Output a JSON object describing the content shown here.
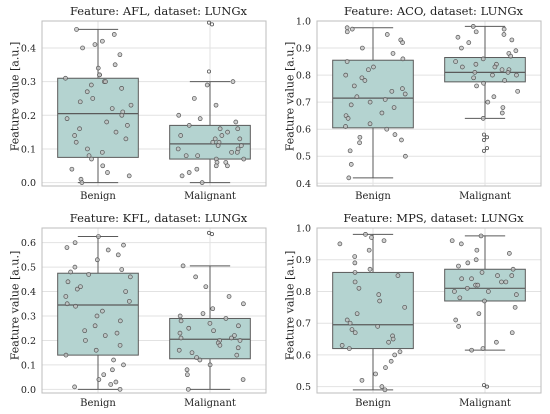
{
  "colors": {
    "box_fill": "#b4d3d0",
    "box_edge": "#5a5a5a",
    "point_edge": "#555555",
    "point_fill": "#c0c0c0",
    "grid": "#e2e2e2",
    "frame": "#bdbdbd"
  },
  "chart_data": [
    {
      "type": "box",
      "title": "Feature: AFL, dataset: LUNGx",
      "ylabel": "Feature value [a.u.]",
      "categories": [
        "Benign",
        "Malignant"
      ],
      "ylim": [
        -0.01,
        0.48
      ],
      "yticks": [
        0.0,
        0.1,
        0.2,
        0.3,
        0.4
      ],
      "ytick_labels": [
        "0.0",
        "0.1",
        "0.2",
        "0.3",
        "0.4"
      ],
      "grid": true,
      "boxes": [
        {
          "category": "Benign",
          "min": 0.0,
          "q1": 0.075,
          "median": 0.205,
          "q3": 0.31,
          "max": 0.455,
          "outliers": [],
          "points": [
            0.455,
            0.44,
            0.42,
            0.41,
            0.4,
            0.38,
            0.35,
            0.34,
            0.32,
            0.32,
            0.31,
            0.3,
            0.3,
            0.29,
            0.28,
            0.27,
            0.25,
            0.24,
            0.23,
            0.22,
            0.21,
            0.2,
            0.19,
            0.18,
            0.17,
            0.16,
            0.15,
            0.14,
            0.13,
            0.12,
            0.1,
            0.09,
            0.08,
            0.07,
            0.05,
            0.04,
            0.03,
            0.02,
            0.01,
            0.0
          ]
        },
        {
          "category": "Malignant",
          "min": 0.0,
          "q1": 0.07,
          "median": 0.115,
          "q3": 0.17,
          "max": 0.3,
          "outliers": [
            0.475,
            0.47,
            0.33
          ],
          "points": [
            0.3,
            0.29,
            0.25,
            0.23,
            0.2,
            0.19,
            0.18,
            0.17,
            0.16,
            0.16,
            0.15,
            0.14,
            0.14,
            0.13,
            0.13,
            0.12,
            0.12,
            0.11,
            0.11,
            0.1,
            0.1,
            0.09,
            0.09,
            0.08,
            0.08,
            0.07,
            0.07,
            0.06,
            0.06,
            0.05,
            0.05,
            0.04,
            0.03,
            0.02,
            0.0
          ]
        }
      ]
    },
    {
      "type": "box",
      "title": "Feature: ACO, dataset: LUNGx",
      "ylabel": "Feature value [a.u.]",
      "categories": [
        "Benign",
        "Malignant"
      ],
      "ylim": [
        0.39,
        1.0
      ],
      "yticks": [
        0.4,
        0.5,
        0.6,
        0.7,
        0.8,
        0.9,
        1.0
      ],
      "ytick_labels": [
        "0.4",
        "0.5",
        "0.6",
        "0.7",
        "0.8",
        "0.9",
        "1.0"
      ],
      "grid": true,
      "boxes": [
        {
          "category": "Benign",
          "min": 0.42,
          "q1": 0.605,
          "median": 0.715,
          "q3": 0.855,
          "max": 0.975,
          "outliers": [],
          "points": [
            0.975,
            0.97,
            0.96,
            0.95,
            0.93,
            0.92,
            0.9,
            0.88,
            0.86,
            0.85,
            0.83,
            0.82,
            0.8,
            0.79,
            0.78,
            0.76,
            0.75,
            0.74,
            0.73,
            0.72,
            0.71,
            0.7,
            0.69,
            0.68,
            0.66,
            0.65,
            0.64,
            0.62,
            0.61,
            0.6,
            0.58,
            0.57,
            0.56,
            0.55,
            0.52,
            0.5,
            0.47,
            0.42
          ]
        },
        {
          "category": "Malignant",
          "min": 0.64,
          "q1": 0.775,
          "median": 0.81,
          "q3": 0.865,
          "max": 0.98,
          "outliers": [
            0.58,
            0.57,
            0.56,
            0.53,
            0.52
          ],
          "points": [
            0.98,
            0.97,
            0.96,
            0.95,
            0.94,
            0.93,
            0.92,
            0.9,
            0.89,
            0.88,
            0.87,
            0.86,
            0.85,
            0.84,
            0.84,
            0.83,
            0.83,
            0.82,
            0.82,
            0.81,
            0.81,
            0.8,
            0.8,
            0.79,
            0.78,
            0.77,
            0.76,
            0.74,
            0.72,
            0.7,
            0.68,
            0.66,
            0.64
          ]
        }
      ]
    },
    {
      "type": "box",
      "title": "Feature: KFL, dataset: LUNGx",
      "ylabel": "Feature value [a.u.]",
      "categories": [
        "Benign",
        "Malignant"
      ],
      "ylim": [
        -0.015,
        0.66
      ],
      "yticks": [
        0.0,
        0.1,
        0.2,
        0.3,
        0.4,
        0.5,
        0.6
      ],
      "ytick_labels": [
        "0.0",
        "0.1",
        "0.2",
        "0.3",
        "0.4",
        "0.5",
        "0.6"
      ],
      "grid": true,
      "boxes": [
        {
          "category": "Benign",
          "min": 0.0,
          "q1": 0.14,
          "median": 0.345,
          "q3": 0.475,
          "max": 0.625,
          "outliers": [],
          "points": [
            0.625,
            0.6,
            0.59,
            0.58,
            0.57,
            0.55,
            0.53,
            0.5,
            0.49,
            0.48,
            0.47,
            0.46,
            0.44,
            0.42,
            0.41,
            0.4,
            0.38,
            0.36,
            0.35,
            0.34,
            0.32,
            0.3,
            0.28,
            0.26,
            0.24,
            0.23,
            0.22,
            0.2,
            0.18,
            0.16,
            0.14,
            0.12,
            0.1,
            0.08,
            0.06,
            0.04,
            0.03,
            0.02,
            0.01,
            0.0
          ]
        },
        {
          "category": "Malignant",
          "min": 0.0,
          "q1": 0.125,
          "median": 0.205,
          "q3": 0.29,
          "max": 0.505,
          "outliers": [
            0.64,
            0.635
          ],
          "points": [
            0.505,
            0.46,
            0.42,
            0.38,
            0.35,
            0.33,
            0.31,
            0.3,
            0.29,
            0.28,
            0.27,
            0.26,
            0.25,
            0.24,
            0.23,
            0.22,
            0.21,
            0.21,
            0.2,
            0.2,
            0.19,
            0.18,
            0.17,
            0.16,
            0.15,
            0.14,
            0.13,
            0.12,
            0.1,
            0.08,
            0.06,
            0.04,
            0.0
          ]
        }
      ]
    },
    {
      "type": "box",
      "title": "Feature: MPS, dataset: LUNGx",
      "ylabel": "Feature value [a.u.]",
      "categories": [
        "Benign",
        "Malignant"
      ],
      "ylim": [
        0.48,
        1.0
      ],
      "yticks": [
        0.5,
        0.6,
        0.7,
        0.8,
        0.9,
        1.0
      ],
      "ytick_labels": [
        "0.5",
        "0.6",
        "0.7",
        "0.8",
        "0.9",
        "1.0"
      ],
      "grid": true,
      "boxes": [
        {
          "category": "Benign",
          "min": 0.49,
          "q1": 0.62,
          "median": 0.695,
          "q3": 0.86,
          "max": 0.98,
          "outliers": [],
          "points": [
            0.98,
            0.97,
            0.96,
            0.95,
            0.93,
            0.91,
            0.89,
            0.87,
            0.86,
            0.85,
            0.83,
            0.81,
            0.79,
            0.77,
            0.75,
            0.73,
            0.71,
            0.7,
            0.69,
            0.68,
            0.67,
            0.66,
            0.65,
            0.64,
            0.63,
            0.62,
            0.61,
            0.6,
            0.58,
            0.56,
            0.54,
            0.52,
            0.5,
            0.49
          ]
        },
        {
          "category": "Malignant",
          "min": 0.615,
          "q1": 0.77,
          "median": 0.81,
          "q3": 0.87,
          "max": 0.975,
          "outliers": [
            0.505,
            0.5
          ],
          "points": [
            0.975,
            0.96,
            0.95,
            0.93,
            0.92,
            0.9,
            0.89,
            0.88,
            0.87,
            0.86,
            0.85,
            0.85,
            0.84,
            0.84,
            0.83,
            0.83,
            0.82,
            0.82,
            0.81,
            0.8,
            0.8,
            0.79,
            0.78,
            0.77,
            0.75,
            0.73,
            0.71,
            0.69,
            0.67,
            0.64,
            0.62,
            0.615
          ]
        }
      ]
    }
  ]
}
